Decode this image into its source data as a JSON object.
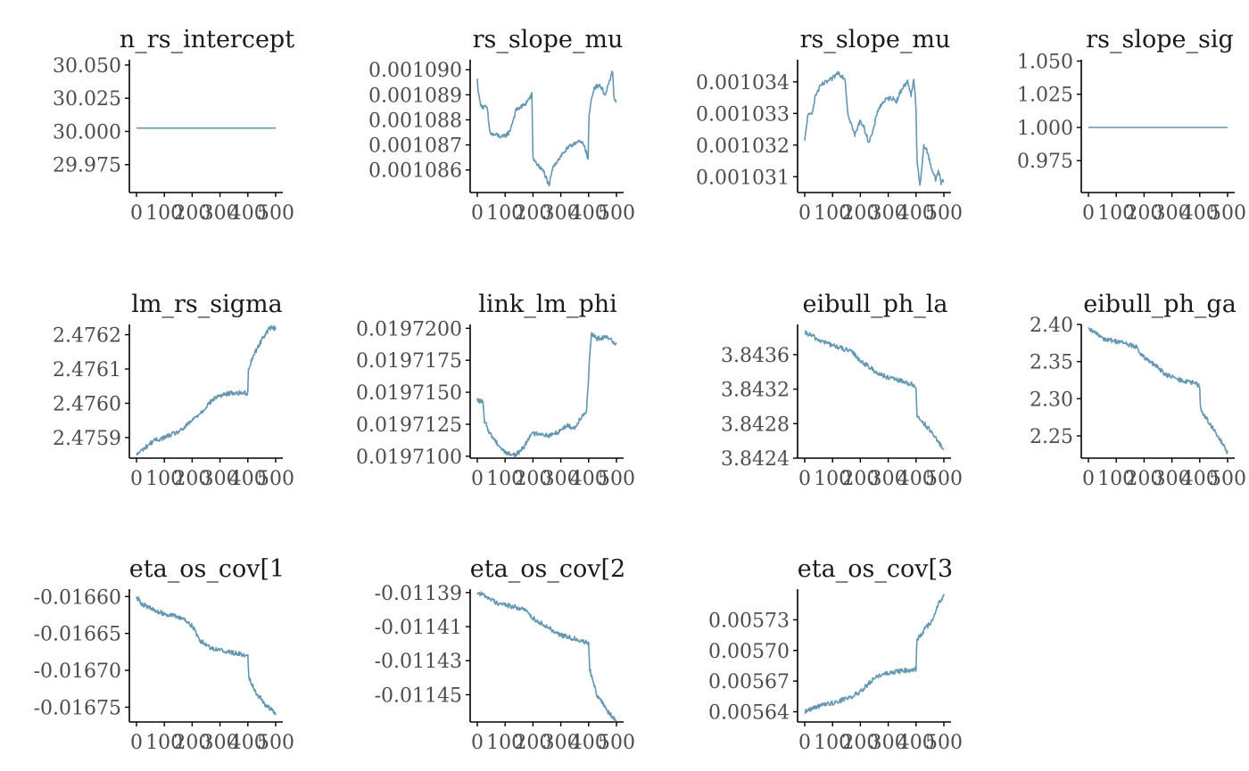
{
  "colors": {
    "trace": "#6497b1",
    "axis": "#000000",
    "tick_text": "#4d4d4d",
    "title": "#1a1a1a"
  },
  "chart_data": [
    {
      "type": "line",
      "title": "n_rs_intercept",
      "x_range": [
        0,
        500
      ],
      "x_ticks": [
        "0",
        "100",
        "200",
        "300",
        "400",
        "500"
      ],
      "y_ticks": [
        29.975,
        30.0,
        30.025,
        30.05
      ],
      "y_tick_labels": [
        "29.975",
        "30.000",
        "30.025",
        "30.050"
      ],
      "ylim": [
        29.954,
        30.054
      ],
      "shape": "flat",
      "y_start": 30.0025,
      "y_end": 30.0025
    },
    {
      "type": "line",
      "title": "rs_slope_mu",
      "x_range": [
        0,
        500
      ],
      "x_ticks": [
        "0",
        "100",
        "200",
        "300",
        "400",
        "500"
      ],
      "y_ticks": [
        0.001086,
        0.001087,
        0.001088,
        0.001089,
        0.00109
      ],
      "y_tick_labels": [
        "0.001086",
        "0.001087",
        "0.001088",
        "0.001089",
        "0.001090"
      ],
      "ylim": [
        0.0010851,
        0.0010904
      ],
      "series_points": [
        [
          0,
          0.0010896
        ],
        [
          5,
          0.001089
        ],
        [
          10,
          0.0010887
        ],
        [
          20,
          0.0010885
        ],
        [
          35,
          0.0010885
        ],
        [
          45,
          0.0010875
        ],
        [
          55,
          0.0010874
        ],
        [
          70,
          0.0010874
        ],
        [
          90,
          0.0010873
        ],
        [
          115,
          0.0010875
        ],
        [
          140,
          0.0010884
        ],
        [
          170,
          0.0010886
        ],
        [
          190,
          0.0010889
        ],
        [
          196,
          0.001089
        ],
        [
          200,
          0.0010865
        ],
        [
          210,
          0.0010863
        ],
        [
          225,
          0.0010861
        ],
        [
          240,
          0.0010859
        ],
        [
          250,
          0.0010856
        ],
        [
          258,
          0.0010853
        ],
        [
          265,
          0.0010858
        ],
        [
          275,
          0.0010862
        ],
        [
          290,
          0.0010864
        ],
        [
          310,
          0.0010867
        ],
        [
          330,
          0.0010869
        ],
        [
          350,
          0.0010871
        ],
        [
          370,
          0.0010871
        ],
        [
          385,
          0.001087
        ],
        [
          398,
          0.0010864
        ],
        [
          401,
          0.0010881
        ],
        [
          410,
          0.0010888
        ],
        [
          420,
          0.0010893
        ],
        [
          440,
          0.0010894
        ],
        [
          460,
          0.001089
        ],
        [
          475,
          0.0010895
        ],
        [
          485,
          0.00109
        ],
        [
          492,
          0.0010888
        ],
        [
          500,
          0.0010887
        ]
      ]
    },
    {
      "type": "line",
      "title": "rs_slope_mu",
      "x_range": [
        0,
        500
      ],
      "x_ticks": [
        "0",
        "100",
        "200",
        "300",
        "400",
        "500"
      ],
      "y_ticks": [
        0.001031,
        0.001032,
        0.001033,
        0.001034
      ],
      "y_tick_labels": [
        "0.001031",
        "0.001032",
        "0.001033",
        "0.001034"
      ],
      "ylim": [
        0.0010305,
        0.0010347
      ],
      "series_points": [
        [
          0,
          0.0010321
        ],
        [
          10,
          0.0010329
        ],
        [
          25,
          0.001033
        ],
        [
          40,
          0.0010336
        ],
        [
          60,
          0.0010339
        ],
        [
          80,
          0.001034
        ],
        [
          100,
          0.0010341
        ],
        [
          120,
          0.0010343
        ],
        [
          145,
          0.0010341
        ],
        [
          155,
          0.001033
        ],
        [
          170,
          0.0010326
        ],
        [
          180,
          0.0010323
        ],
        [
          200,
          0.0010328
        ],
        [
          215,
          0.0010325
        ],
        [
          230,
          0.0010321
        ],
        [
          245,
          0.0010324
        ],
        [
          262,
          0.0010331
        ],
        [
          285,
          0.0010334
        ],
        [
          310,
          0.0010335
        ],
        [
          330,
          0.0010334
        ],
        [
          350,
          0.0010338
        ],
        [
          370,
          0.001034
        ],
        [
          382,
          0.0010336
        ],
        [
          392,
          0.0010341
        ],
        [
          400,
          0.0010331
        ],
        [
          404,
          0.0010314
        ],
        [
          415,
          0.0010307
        ],
        [
          428,
          0.001032
        ],
        [
          440,
          0.0010318
        ],
        [
          455,
          0.0010313
        ],
        [
          470,
          0.0010309
        ],
        [
          480,
          0.0010312
        ],
        [
          490,
          0.0010308
        ],
        [
          500,
          0.0010309
        ]
      ]
    },
    {
      "type": "line",
      "title": "rs_slope_sig",
      "x_range": [
        0,
        500
      ],
      "x_ticks": [
        "0",
        "100",
        "200",
        "300",
        "400",
        "500"
      ],
      "y_ticks": [
        0.975,
        1.0,
        1.025,
        1.05
      ],
      "y_tick_labels": [
        "0.975",
        "1.000",
        "1.025",
        "1.050"
      ],
      "ylim": [
        0.951,
        1.051
      ],
      "shape": "flat",
      "y_start": 1.0,
      "y_end": 1.0
    },
    {
      "type": "line",
      "title": "lm_rs_sigma",
      "x_range": [
        0,
        500
      ],
      "x_ticks": [
        "0",
        "100",
        "200",
        "300",
        "400",
        "500"
      ],
      "y_ticks": [
        2.4759,
        2.476,
        2.4761,
        2.4762
      ],
      "y_tick_labels": [
        "2.4759",
        "2.4760",
        "2.4761",
        "2.4762"
      ],
      "ylim": [
        2.47584,
        2.47623
      ],
      "series_points": [
        [
          0,
          2.47585
        ],
        [
          30,
          2.47587
        ],
        [
          60,
          2.47589
        ],
        [
          100,
          2.4759
        ],
        [
          160,
          2.47592
        ],
        [
          200,
          2.47595
        ],
        [
          240,
          2.47598
        ],
        [
          260,
          2.476
        ],
        [
          290,
          2.47602
        ],
        [
          340,
          2.47603
        ],
        [
          400,
          2.47603
        ],
        [
          402,
          2.4761
        ],
        [
          420,
          2.47614
        ],
        [
          440,
          2.47617
        ],
        [
          460,
          2.4762
        ],
        [
          480,
          2.47622
        ],
        [
          500,
          2.47622
        ]
      ]
    },
    {
      "type": "line",
      "title": "link_lm_phi",
      "x_range": [
        0,
        500
      ],
      "x_ticks": [
        "0",
        "100",
        "200",
        "300",
        "400",
        "500"
      ],
      "y_ticks": [
        0.01971,
        0.0197125,
        0.019715,
        0.0197175,
        0.01972
      ],
      "y_tick_labels": [
        "0.0197100",
        "0.0197125",
        "0.0197150",
        "0.0197175",
        "0.0197200"
      ],
      "ylim": [
        0.01970985,
        0.0197203
      ],
      "series_points": [
        [
          0,
          0.0197144
        ],
        [
          20,
          0.0197142
        ],
        [
          25,
          0.0197128
        ],
        [
          45,
          0.0197118
        ],
        [
          65,
          0.0197112
        ],
        [
          90,
          0.0197105
        ],
        [
          110,
          0.0197102
        ],
        [
          140,
          0.0197101
        ],
        [
          170,
          0.0197108
        ],
        [
          190,
          0.0197117
        ],
        [
          220,
          0.0197118
        ],
        [
          260,
          0.0197116
        ],
        [
          290,
          0.0197119
        ],
        [
          320,
          0.0197124
        ],
        [
          350,
          0.0197122
        ],
        [
          370,
          0.019713
        ],
        [
          392,
          0.0197135
        ],
        [
          398,
          0.0197155
        ],
        [
          402,
          0.0197172
        ],
        [
          410,
          0.0197195
        ],
        [
          430,
          0.0197192
        ],
        [
          460,
          0.0197193
        ],
        [
          480,
          0.0197191
        ],
        [
          500,
          0.0197188
        ]
      ]
    },
    {
      "type": "line",
      "title": "eibull_ph_la",
      "x_range": [
        0,
        500
      ],
      "x_ticks": [
        "0",
        "100",
        "200",
        "300",
        "400",
        "500"
      ],
      "y_ticks": [
        3.8424,
        3.8428,
        3.8432,
        3.8436
      ],
      "y_tick_labels": [
        "3.8424",
        "3.8428",
        "3.8432",
        "3.8436"
      ],
      "ylim": [
        3.8424,
        3.84395
      ],
      "series_points": [
        [
          0,
          3.84385
        ],
        [
          20,
          3.84383
        ],
        [
          50,
          3.84377
        ],
        [
          100,
          3.84371
        ],
        [
          170,
          3.84363
        ],
        [
          200,
          3.84353
        ],
        [
          230,
          3.84346
        ],
        [
          260,
          3.84339
        ],
        [
          300,
          3.84333
        ],
        [
          340,
          3.8433
        ],
        [
          390,
          3.84325
        ],
        [
          400,
          3.84322
        ],
        [
          403,
          3.84289
        ],
        [
          430,
          3.8428
        ],
        [
          460,
          3.84268
        ],
        [
          480,
          3.84258
        ],
        [
          500,
          3.84251
        ]
      ]
    },
    {
      "type": "line",
      "title": "eibull_ph_ga",
      "x_range": [
        0,
        500
      ],
      "x_ticks": [
        "0",
        "100",
        "200",
        "300",
        "400",
        "500"
      ],
      "y_ticks": [
        2.25,
        2.3,
        2.35,
        2.4
      ],
      "y_tick_labels": [
        "2.25",
        "2.30",
        "2.35",
        "2.40"
      ],
      "ylim": [
        2.22,
        2.4
      ],
      "series_points": [
        [
          0,
          2.393
        ],
        [
          30,
          2.388
        ],
        [
          60,
          2.38
        ],
        [
          120,
          2.376
        ],
        [
          170,
          2.37
        ],
        [
          200,
          2.355
        ],
        [
          250,
          2.342
        ],
        [
          280,
          2.332
        ],
        [
          330,
          2.325
        ],
        [
          390,
          2.32
        ],
        [
          400,
          2.315
        ],
        [
          403,
          2.285
        ],
        [
          430,
          2.27
        ],
        [
          460,
          2.252
        ],
        [
          480,
          2.24
        ],
        [
          500,
          2.228
        ]
      ]
    },
    {
      "type": "line",
      "title": "eta_os_cov[1",
      "x_range": [
        0,
        500
      ],
      "x_ticks": [
        "0",
        "100",
        "200",
        "300",
        "400",
        "500"
      ],
      "y_ticks": [
        -0.01675,
        -0.0167,
        -0.01665,
        -0.0166
      ],
      "y_tick_labels": [
        "-0.01675",
        "-0.01670",
        "-0.01665",
        "-0.01660"
      ],
      "ylim": [
        -0.01677,
        -0.01659
      ],
      "series_points": [
        [
          0,
          -0.0166
        ],
        [
          20,
          -0.01661
        ],
        [
          70,
          -0.01662
        ],
        [
          170,
          -0.01663
        ],
        [
          200,
          -0.01664
        ],
        [
          230,
          -0.01666
        ],
        [
          270,
          -0.01667
        ],
        [
          330,
          -0.016675
        ],
        [
          400,
          -0.01668
        ],
        [
          404,
          -0.01671
        ],
        [
          430,
          -0.01673
        ],
        [
          460,
          -0.016745
        ],
        [
          490,
          -0.016755
        ],
        [
          500,
          -0.01676
        ]
      ]
    },
    {
      "type": "line",
      "title": "eta_os_cov[2",
      "x_range": [
        0,
        500
      ],
      "x_ticks": [
        "0",
        "100",
        "200",
        "300",
        "400",
        "500"
      ],
      "y_ticks": [
        -0.01145,
        -0.01143,
        -0.01141,
        -0.01139
      ],
      "y_tick_labels": [
        "-0.01145",
        "-0.01143",
        "-0.01141",
        "-0.01139"
      ],
      "ylim": [
        -0.011466,
        -0.011388
      ],
      "series_points": [
        [
          0,
          -0.01139
        ],
        [
          30,
          -0.011392
        ],
        [
          70,
          -0.011396
        ],
        [
          170,
          -0.0114
        ],
        [
          200,
          -0.011405
        ],
        [
          250,
          -0.01141
        ],
        [
          300,
          -0.011415
        ],
        [
          370,
          -0.011418
        ],
        [
          400,
          -0.01142
        ],
        [
          404,
          -0.011435
        ],
        [
          430,
          -0.01145
        ],
        [
          470,
          -0.01146
        ],
        [
          500,
          -0.011466
        ]
      ]
    },
    {
      "type": "line",
      "title": "eta_os_cov[3",
      "x_range": [
        0,
        500
      ],
      "x_ticks": [
        "0",
        "100",
        "200",
        "300",
        "400",
        "500"
      ],
      "y_ticks": [
        0.00564,
        0.00567,
        0.0057,
        0.00573
      ],
      "y_tick_labels": [
        "0.00564",
        "0.00567",
        "0.00570",
        "0.00573"
      ],
      "ylim": [
        0.00563,
        0.00576
      ],
      "series_points": [
        [
          0,
          0.00564
        ],
        [
          40,
          0.005645
        ],
        [
          120,
          0.00565
        ],
        [
          170,
          0.005655
        ],
        [
          200,
          0.00566
        ],
        [
          260,
          0.005675
        ],
        [
          300,
          0.005678
        ],
        [
          350,
          0.00568
        ],
        [
          400,
          0.005682
        ],
        [
          403,
          0.00571
        ],
        [
          430,
          0.00572
        ],
        [
          460,
          0.00573
        ],
        [
          480,
          0.005745
        ],
        [
          500,
          0.005755
        ]
      ]
    }
  ]
}
